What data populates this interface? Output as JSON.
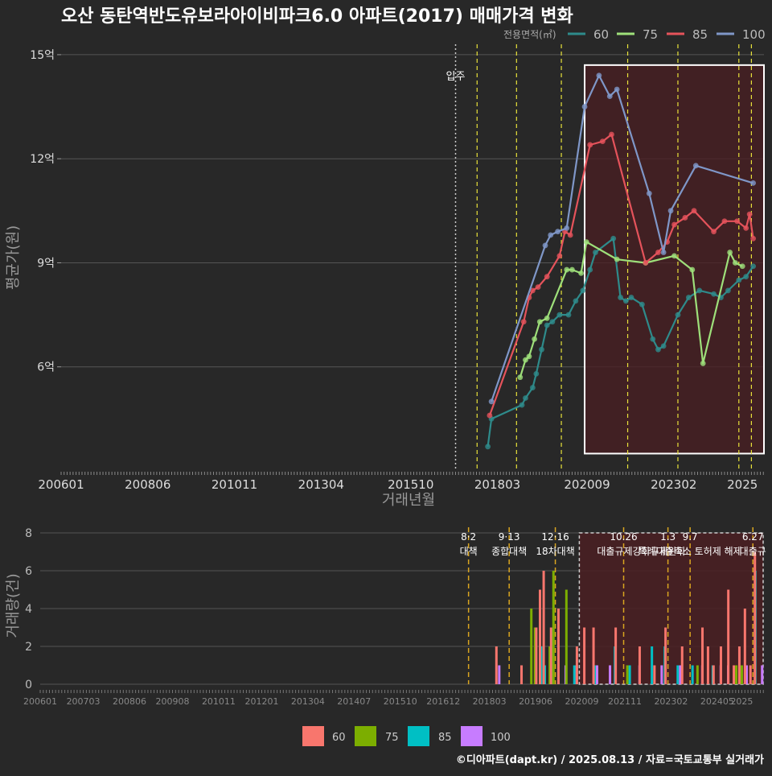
{
  "title": "오산 동탄역반도유보라아이비파크6.0 아파트(2017) 매매가격 변화",
  "legend_top": {
    "title": "전용면적(㎡)",
    "entries": [
      "60",
      "75",
      "85",
      "100"
    ]
  },
  "legend_bottom": {
    "entries": [
      "60",
      "75",
      "85",
      "100"
    ]
  },
  "source": "©디아파트(dapt.kr) / 2025.08.13 / 자료=국토교통부 실거래가",
  "colors": {
    "background": "#282828",
    "grid": "#555555",
    "line_60": "#2E8B8B",
    "line_75": "#9EE07A",
    "line_85": "#E5535B",
    "line_100": "#7F97C8",
    "bar_60": "#F8766D",
    "bar_75": "#7CAE00",
    "bar_85": "#00BFC4",
    "bar_100": "#C77CFF",
    "highlight_fill": "#4A1E22",
    "policy_line": "#D9A520",
    "vline": "#E8E23A"
  },
  "chart_data": [
    {
      "type": "line",
      "title": "오산 동탄역반도유보라아이비파크6.0 아파트(2017) 매매가격 변화",
      "xlabel": "거래년월",
      "ylabel": "평균가(원)",
      "x_tick_labels": [
        "200601",
        "200806",
        "201011",
        "201304",
        "201510",
        "201803",
        "202009",
        "202302",
        "2025"
      ],
      "y_tick_values": [
        6,
        9,
        12,
        15
      ],
      "y_tick_labels": [
        "6억",
        "9억",
        "12억",
        "15억"
      ],
      "xlim": [
        2006.0,
        2025.6
      ],
      "ylim": [
        3.0,
        15.3
      ],
      "move_in_label": "입주",
      "move_in_x": 2017.0,
      "marker_lines_x": [
        2017.6,
        2018.7,
        2019.95,
        2021.8,
        2023.2,
        2024.9,
        2025.25
      ],
      "highlight": {
        "x0": 2020.6,
        "x1": 2025.6,
        "y0": 3.5,
        "y1": 14.7
      },
      "series": [
        {
          "name": "60",
          "points": [
            [
              2017.9,
              3.7
            ],
            [
              2018.0,
              4.5
            ],
            [
              2018.85,
              4.9
            ],
            [
              2018.95,
              5.1
            ],
            [
              2019.15,
              5.4
            ],
            [
              2019.25,
              5.8
            ],
            [
              2019.4,
              6.5
            ],
            [
              2019.55,
              7.2
            ],
            [
              2019.7,
              7.3
            ],
            [
              2019.9,
              7.5
            ],
            [
              2020.15,
              7.5
            ],
            [
              2020.35,
              7.9
            ],
            [
              2020.55,
              8.2
            ],
            [
              2020.75,
              8.8
            ],
            [
              2020.9,
              9.3
            ],
            [
              2021.4,
              9.7
            ],
            [
              2021.6,
              8.0
            ],
            [
              2021.75,
              7.9
            ],
            [
              2021.9,
              8.0
            ],
            [
              2022.2,
              7.8
            ],
            [
              2022.5,
              6.8
            ],
            [
              2022.65,
              6.5
            ],
            [
              2022.8,
              6.6
            ],
            [
              2023.2,
              7.5
            ],
            [
              2023.5,
              8.0
            ],
            [
              2023.8,
              8.2
            ],
            [
              2024.2,
              8.1
            ],
            [
              2024.4,
              8.0
            ],
            [
              2024.6,
              8.2
            ],
            [
              2024.9,
              8.5
            ],
            [
              2025.1,
              8.6
            ],
            [
              2025.3,
              8.9
            ]
          ]
        },
        {
          "name": "75",
          "points": [
            [
              2018.8,
              5.7
            ],
            [
              2018.95,
              6.2
            ],
            [
              2019.05,
              6.3
            ],
            [
              2019.2,
              6.8
            ],
            [
              2019.35,
              7.3
            ],
            [
              2019.55,
              7.4
            ],
            [
              2020.1,
              8.8
            ],
            [
              2020.25,
              8.8
            ],
            [
              2020.5,
              8.7
            ],
            [
              2020.65,
              9.6
            ],
            [
              2021.5,
              9.1
            ],
            [
              2022.3,
              9.0
            ],
            [
              2023.1,
              9.2
            ],
            [
              2023.6,
              8.8
            ],
            [
              2023.9,
              6.1
            ],
            [
              2024.65,
              9.3
            ],
            [
              2024.8,
              9.0
            ],
            [
              2025.0,
              8.9
            ]
          ]
        },
        {
          "name": "85",
          "points": [
            [
              2017.95,
              4.6
            ],
            [
              2018.9,
              7.3
            ],
            [
              2019.05,
              8.0
            ],
            [
              2019.15,
              8.2
            ],
            [
              2019.3,
              8.3
            ],
            [
              2019.55,
              8.6
            ],
            [
              2019.9,
              9.2
            ],
            [
              2020.05,
              9.9
            ],
            [
              2020.2,
              9.8
            ],
            [
              2020.75,
              12.4
            ],
            [
              2021.1,
              12.5
            ],
            [
              2021.35,
              12.7
            ],
            [
              2022.3,
              9.0
            ],
            [
              2022.65,
              9.3
            ],
            [
              2022.9,
              9.6
            ],
            [
              2023.1,
              10.1
            ],
            [
              2023.4,
              10.3
            ],
            [
              2023.65,
              10.5
            ],
            [
              2024.2,
              9.9
            ],
            [
              2024.5,
              10.2
            ],
            [
              2024.85,
              10.2
            ],
            [
              2025.1,
              10.0
            ],
            [
              2025.2,
              10.4
            ],
            [
              2025.3,
              9.7
            ]
          ]
        },
        {
          "name": "100",
          "points": [
            [
              2018.0,
              5.0
            ],
            [
              2019.5,
              9.5
            ],
            [
              2019.65,
              9.8
            ],
            [
              2019.85,
              9.9
            ],
            [
              2020.1,
              10.0
            ],
            [
              2020.6,
              13.5
            ],
            [
              2021.0,
              14.4
            ],
            [
              2021.3,
              13.8
            ],
            [
              2021.5,
              14.0
            ],
            [
              2022.4,
              11.0
            ],
            [
              2022.8,
              9.3
            ],
            [
              2023.0,
              10.5
            ],
            [
              2023.7,
              11.8
            ],
            [
              2025.3,
              11.3
            ]
          ]
        }
      ]
    },
    {
      "type": "bar",
      "xlabel": "",
      "ylabel": "거래량(건)",
      "x_tick_labels": [
        "200601",
        "200703",
        "200806",
        "200908",
        "201011",
        "201201",
        "201304",
        "201407",
        "201510",
        "201612",
        "201803",
        "201906",
        "202009",
        "202111",
        "202302",
        "202405",
        "2025"
      ],
      "y_tick_values": [
        0,
        2,
        4,
        6,
        8
      ],
      "ylim": [
        0,
        8.3
      ],
      "xlim": [
        2006.0,
        2025.6
      ],
      "policy_events": [
        {
          "x": 2017.6,
          "date": "8·2",
          "label": "대책"
        },
        {
          "x": 2018.7,
          "date": "9·13",
          "label": "종합대책"
        },
        {
          "x": 2019.95,
          "date": "12·16",
          "label": "18차대책"
        },
        {
          "x": 2021.8,
          "date": "10.26",
          "label": "대출규제강화"
        },
        {
          "x": 2023.0,
          "date": "1.3",
          "label": "규제완화"
        },
        {
          "x": 2023.6,
          "date": "9.7",
          "label": "특례대출축소 토허제 해제"
        },
        {
          "x": 2025.3,
          "date": "6.27",
          "label": "대출규"
        }
      ],
      "highlight": {
        "x0": 2020.6,
        "x1": 2025.6
      },
      "bars": [
        {
          "x": 2018.3,
          "v": [
            0,
            0,
            0,
            1
          ]
        },
        {
          "x": 2018.42,
          "v": [
            2,
            0,
            0,
            0
          ]
        },
        {
          "x": 2019.1,
          "v": [
            1,
            0,
            0,
            0
          ]
        },
        {
          "x": 2019.3,
          "v": [
            0,
            4,
            0,
            0
          ]
        },
        {
          "x": 2019.4,
          "v": [
            0,
            3,
            0,
            0
          ]
        },
        {
          "x": 2019.5,
          "v": [
            3,
            0,
            2,
            0
          ]
        },
        {
          "x": 2019.6,
          "v": [
            5,
            0,
            1,
            0
          ]
        },
        {
          "x": 2019.7,
          "v": [
            6,
            0,
            0,
            0
          ]
        },
        {
          "x": 2019.8,
          "v": [
            0,
            2,
            3,
            0
          ]
        },
        {
          "x": 2019.9,
          "v": [
            3,
            6,
            0,
            0
          ]
        },
        {
          "x": 2020.1,
          "v": [
            4,
            0,
            0,
            1
          ]
        },
        {
          "x": 2020.25,
          "v": [
            0,
            5,
            0,
            0
          ]
        },
        {
          "x": 2020.4,
          "v": [
            0,
            0,
            1,
            1
          ]
        },
        {
          "x": 2020.6,
          "v": [
            2,
            0,
            0,
            0
          ]
        },
        {
          "x": 2020.8,
          "v": [
            3,
            0,
            0,
            0
          ]
        },
        {
          "x": 2020.95,
          "v": [
            0,
            0,
            1,
            1
          ]
        },
        {
          "x": 2021.05,
          "v": [
            3,
            0,
            0,
            0
          ]
        },
        {
          "x": 2021.3,
          "v": [
            0,
            0,
            0,
            1
          ]
        },
        {
          "x": 2021.5,
          "v": [
            0,
            0,
            2,
            0
          ]
        },
        {
          "x": 2021.65,
          "v": [
            3,
            0,
            0,
            0
          ]
        },
        {
          "x": 2021.9,
          "v": [
            0,
            1,
            1,
            0
          ]
        },
        {
          "x": 2022.1,
          "v": [
            0,
            0,
            0,
            1
          ]
        },
        {
          "x": 2022.3,
          "v": [
            2,
            0,
            0,
            0
          ]
        },
        {
          "x": 2022.5,
          "v": [
            0,
            0,
            2,
            0
          ]
        },
        {
          "x": 2022.7,
          "v": [
            1,
            0,
            0,
            1
          ]
        },
        {
          "x": 2022.85,
          "v": [
            0,
            0,
            2,
            0
          ]
        },
        {
          "x": 2023.0,
          "v": [
            3,
            0,
            0,
            0
          ]
        },
        {
          "x": 2023.2,
          "v": [
            0,
            0,
            1,
            1
          ]
        },
        {
          "x": 2023.45,
          "v": [
            2,
            0,
            0,
            0
          ]
        },
        {
          "x": 2023.6,
          "v": [
            0,
            0,
            1,
            0
          ]
        },
        {
          "x": 2023.8,
          "v": [
            0,
            1,
            0,
            1
          ]
        },
        {
          "x": 2024.0,
          "v": [
            3,
            0,
            0,
            0
          ]
        },
        {
          "x": 2024.15,
          "v": [
            2,
            0,
            1,
            0
          ]
        },
        {
          "x": 2024.3,
          "v": [
            1,
            0,
            0,
            1
          ]
        },
        {
          "x": 2024.5,
          "v": [
            2,
            0,
            0,
            1
          ]
        },
        {
          "x": 2024.7,
          "v": [
            5,
            0,
            0,
            0
          ]
        },
        {
          "x": 2024.85,
          "v": [
            1,
            1,
            0,
            0
          ]
        },
        {
          "x": 2025.0,
          "v": [
            2,
            1,
            0,
            1
          ]
        },
        {
          "x": 2025.15,
          "v": [
            4,
            0,
            0,
            0
          ]
        },
        {
          "x": 2025.3,
          "v": [
            1,
            0,
            6,
            0
          ]
        },
        {
          "x": 2025.42,
          "v": [
            7,
            0,
            0,
            1
          ]
        }
      ]
    }
  ]
}
